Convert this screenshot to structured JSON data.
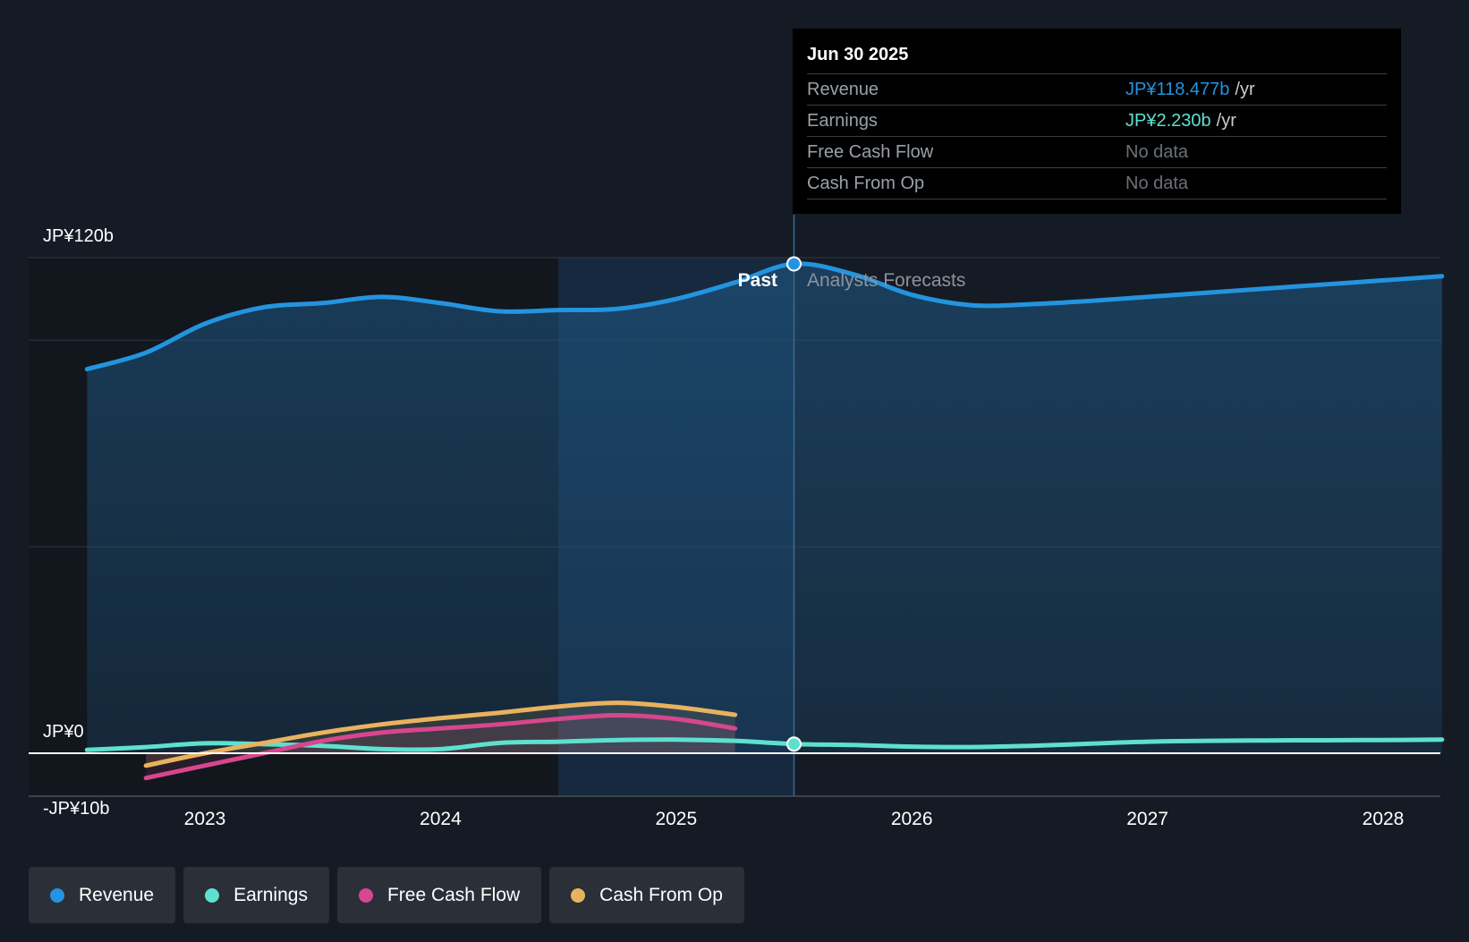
{
  "chart_data": {
    "type": "line",
    "title": "",
    "xlabel": "",
    "ylabel": "",
    "y_axis_labels": [
      "JP¥120b",
      "JP¥0",
      "-JP¥10b"
    ],
    "y_axis_label_values": [
      120,
      0,
      -10
    ],
    "ylim": [
      -10,
      120
    ],
    "xlim": [
      2022.35,
      2028.25
    ],
    "x_ticks": [
      2023,
      2024,
      2025,
      2026,
      2027,
      2028
    ],
    "x_tick_labels": [
      "2023",
      "2024",
      "2025",
      "2026",
      "2027",
      "2028"
    ],
    "past_label": "Past",
    "forecast_label": "Analysts Forecasts",
    "divider_x": 2025.5,
    "highlight_start_x": 2024.5,
    "series": [
      {
        "name": "Revenue",
        "color": "#2394df",
        "area": true,
        "x": [
          2022.5,
          2022.75,
          2023.0,
          2023.25,
          2023.5,
          2023.75,
          2024.0,
          2024.25,
          2024.5,
          2024.75,
          2025.0,
          2025.25,
          2025.5,
          2025.75,
          2026.0,
          2026.25,
          2026.5,
          2026.75,
          2027.0,
          2027.25,
          2027.5,
          2027.75,
          2028.0,
          2028.25
        ],
        "values": [
          93,
          97,
          104,
          108,
          109,
          110.5,
          109,
          107,
          107.3,
          107.6,
          110,
          114,
          118.5,
          116,
          111,
          108.5,
          108.7,
          109.5,
          110.5,
          111.5,
          112.5,
          113.5,
          114.5,
          115.5
        ]
      },
      {
        "name": "Earnings",
        "color": "#5ee0cf",
        "area": false,
        "x": [
          2022.5,
          2022.75,
          2023.0,
          2023.25,
          2023.5,
          2023.75,
          2024.0,
          2024.25,
          2024.5,
          2024.75,
          2025.0,
          2025.25,
          2025.5,
          2025.75,
          2026.0,
          2026.25,
          2026.5,
          2026.75,
          2027.0,
          2027.25,
          2027.5,
          2027.75,
          2028.0,
          2028.25
        ],
        "values": [
          0.8,
          1.5,
          2.4,
          2.2,
          1.8,
          1.0,
          1.0,
          2.5,
          2.8,
          3.2,
          3.3,
          3.0,
          2.23,
          2.0,
          1.6,
          1.5,
          1.8,
          2.3,
          2.8,
          3.0,
          3.1,
          3.15,
          3.2,
          3.3
        ]
      },
      {
        "name": "Free Cash Flow",
        "color": "#d6478d",
        "area": true,
        "x": [
          2022.75,
          2023.0,
          2023.25,
          2023.5,
          2023.75,
          2024.0,
          2024.25,
          2024.5,
          2024.75,
          2025.0,
          2025.25
        ],
        "values": [
          -6,
          -3,
          0,
          3,
          5,
          6,
          7,
          8.3,
          9.2,
          8.3,
          6
        ]
      },
      {
        "name": "Cash From Op",
        "color": "#e9b25f",
        "area": true,
        "x": [
          2022.75,
          2023.0,
          2023.25,
          2023.5,
          2023.75,
          2024.0,
          2024.25,
          2024.5,
          2024.75,
          2025.0,
          2025.25
        ],
        "values": [
          -3,
          0,
          2.5,
          5,
          7,
          8.5,
          9.8,
          11.3,
          12.2,
          11.2,
          9.3
        ]
      }
    ],
    "highlight_point": {
      "x": 2025.5,
      "revenue": 118.477,
      "earnings": 2.23
    }
  },
  "tooltip": {
    "date": "Jun 30 2025",
    "rows": [
      {
        "label": "Revenue",
        "value": "JP¥118.477b",
        "unit": "/yr",
        "color": "#2394df"
      },
      {
        "label": "Earnings",
        "value": "JP¥2.230b",
        "unit": "/yr",
        "color": "#5ee0cf"
      },
      {
        "label": "Free Cash Flow",
        "value": "No data",
        "unit": "",
        "color": "#6b7079"
      },
      {
        "label": "Cash From Op",
        "value": "No data",
        "unit": "",
        "color": "#6b7079"
      }
    ]
  },
  "legend": [
    {
      "label": "Revenue",
      "color": "#2394df"
    },
    {
      "label": "Earnings",
      "color": "#5ee0cf"
    },
    {
      "label": "Free Cash Flow",
      "color": "#d6478d"
    },
    {
      "label": "Cash From Op",
      "color": "#e9b25f"
    }
  ]
}
